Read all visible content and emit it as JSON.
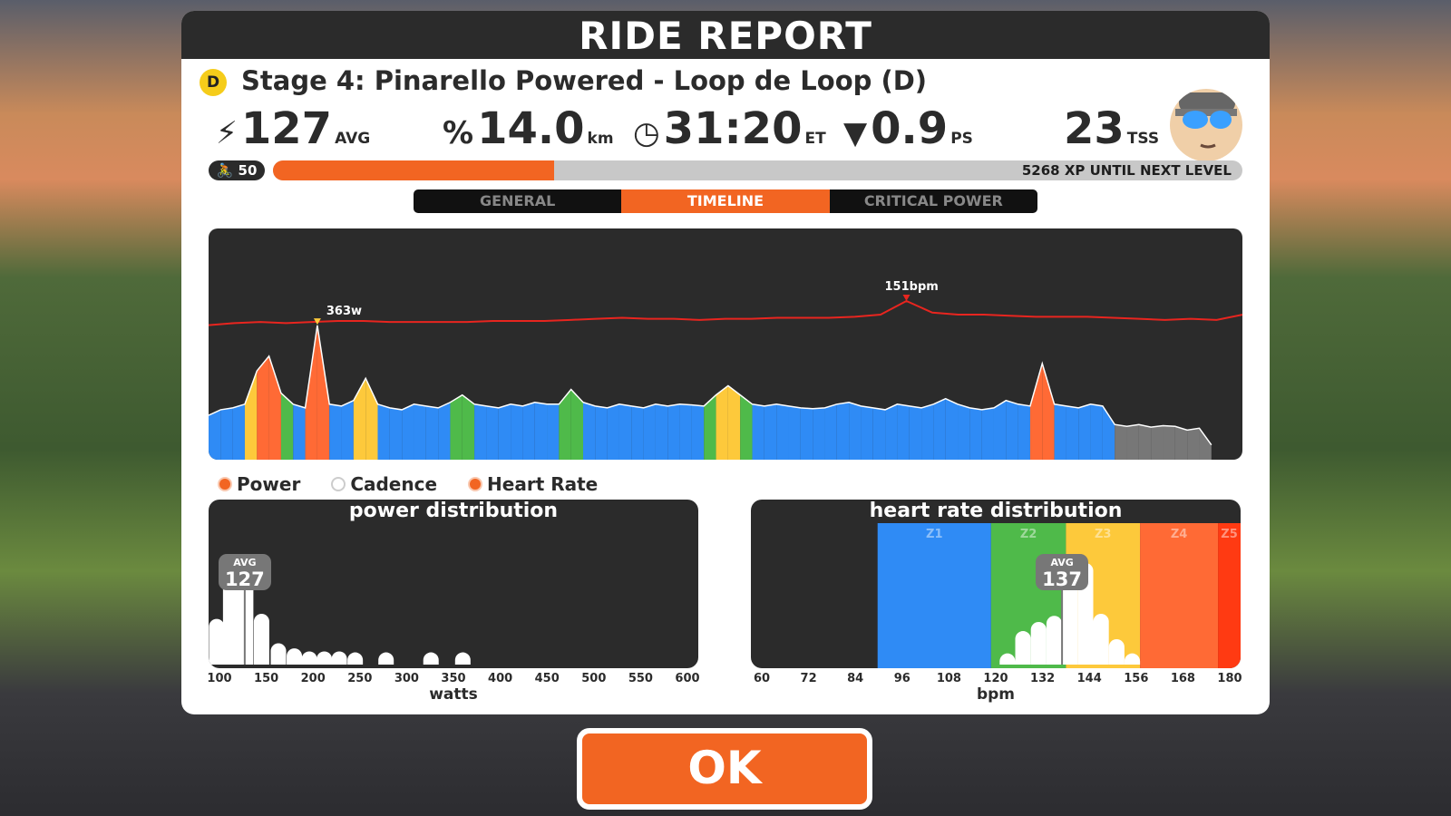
{
  "title": "RIDE REPORT",
  "ride": {
    "category": "D",
    "name": "Stage 4: Pinarello Powered - Loop de Loop (D)"
  },
  "stats": [
    {
      "icon": "lightning-icon",
      "value": "127",
      "unit": "AVG"
    },
    {
      "icon": "distance-icon",
      "value": "14.0",
      "unit": "km"
    },
    {
      "icon": "clock-icon",
      "value": "31:20",
      "unit": "ET"
    },
    {
      "icon": "pizza-icon",
      "value": "0.9",
      "unit": "PS"
    },
    {
      "icon": "",
      "value": "23",
      "unit": "TSS"
    }
  ],
  "level": {
    "value": "50",
    "xp_progress": 0.29,
    "xp_text": "5268 XP UNTIL NEXT LEVEL"
  },
  "tabs": [
    {
      "label": "GENERAL"
    },
    {
      "label": "TIMELINE",
      "active": true
    },
    {
      "label": "CRITICAL POWER"
    }
  ],
  "legend": [
    {
      "label": "Power",
      "on": true
    },
    {
      "label": "Cadence",
      "on": false
    },
    {
      "label": "Heart Rate",
      "on": true
    }
  ],
  "colors": {
    "accent": "#f26522",
    "hr_line": "#e8251f",
    "z1": "#2f8bf5",
    "z2": "#4fba4a",
    "z3": "#fdc93b",
    "z4": "#ff6a35",
    "z5": "#ff3a12",
    "gray": "#777777"
  },
  "chart_data": [
    {
      "type": "area",
      "name": "timeline",
      "annotations": [
        {
          "label": "363w"
        },
        {
          "label": "151bpm"
        }
      ],
      "power": [
        120,
        135,
        140,
        150,
        240,
        280,
        180,
        150,
        140,
        363,
        150,
        145,
        160,
        220,
        150,
        140,
        135,
        150,
        145,
        140,
        155,
        175,
        150,
        145,
        140,
        150,
        145,
        155,
        150,
        150,
        190,
        155,
        145,
        140,
        150,
        145,
        140,
        150,
        145,
        150,
        148,
        145,
        175,
        200,
        175,
        150,
        145,
        150,
        145,
        140,
        138,
        140,
        150,
        155,
        145,
        140,
        135,
        150,
        145,
        140,
        150,
        165,
        150,
        140,
        135,
        140,
        160,
        150,
        145,
        260,
        150,
        145,
        140,
        150,
        145,
        95,
        90,
        95,
        88,
        92,
        90,
        80,
        85,
        40
      ],
      "heart_rate": [
        128,
        130,
        131,
        130,
        131,
        132,
        132,
        131,
        131,
        131,
        131,
        132,
        132,
        132,
        133,
        134,
        135,
        134,
        134,
        133,
        134,
        134,
        135,
        135,
        135,
        136,
        138,
        151,
        140,
        138,
        138,
        137,
        136,
        136,
        136,
        135,
        134,
        133,
        134,
        133,
        138
      ],
      "power_range": [
        0,
        625
      ],
      "hr_range": [
        0,
        220
      ]
    },
    {
      "type": "bar",
      "title": "power distribution",
      "xlabel": "watts",
      "xlim": [
        100,
        600
      ],
      "ticks": [
        "100",
        "150",
        "200",
        "250",
        "300",
        "350",
        "400",
        "450",
        "500",
        "550",
        "600"
      ],
      "avg_label": "AVG",
      "avg": "127",
      "bins": [
        [
          97,
          45
        ],
        [
          112,
          100
        ],
        [
          128,
          100
        ],
        [
          145,
          50
        ],
        [
          163,
          21
        ],
        [
          180,
          16
        ],
        [
          196,
          13
        ],
        [
          212,
          13
        ],
        [
          228,
          13
        ],
        [
          245,
          12
        ],
        [
          278,
          12
        ],
        [
          326,
          12
        ],
        [
          360,
          12
        ]
      ]
    },
    {
      "type": "bar",
      "title": "heart rate distribution",
      "xlabel": "bpm",
      "xlim": [
        60,
        180
      ],
      "ticks": [
        "60",
        "72",
        "84",
        "96",
        "108",
        "120",
        "132",
        "144",
        "156",
        "168",
        "180"
      ],
      "zones": [
        {
          "label": "Z1",
          "from": 89.7,
          "to": 118.8
        },
        {
          "label": "Z2",
          "from": 118.8,
          "to": 138
        },
        {
          "label": "Z3",
          "from": 138,
          "to": 157
        },
        {
          "label": "Z4",
          "from": 157,
          "to": 177
        },
        {
          "label": "Z5",
          "from": 177,
          "to": 186
        }
      ],
      "avg_label": "AVG",
      "avg": "137",
      "bins": [
        [
          123,
          11
        ],
        [
          127,
          33
        ],
        [
          131,
          42
        ],
        [
          135,
          48
        ],
        [
          139,
          100
        ],
        [
          143,
          100
        ],
        [
          147,
          50
        ],
        [
          151,
          25
        ],
        [
          155,
          11
        ]
      ]
    }
  ],
  "ok_label": "OK"
}
